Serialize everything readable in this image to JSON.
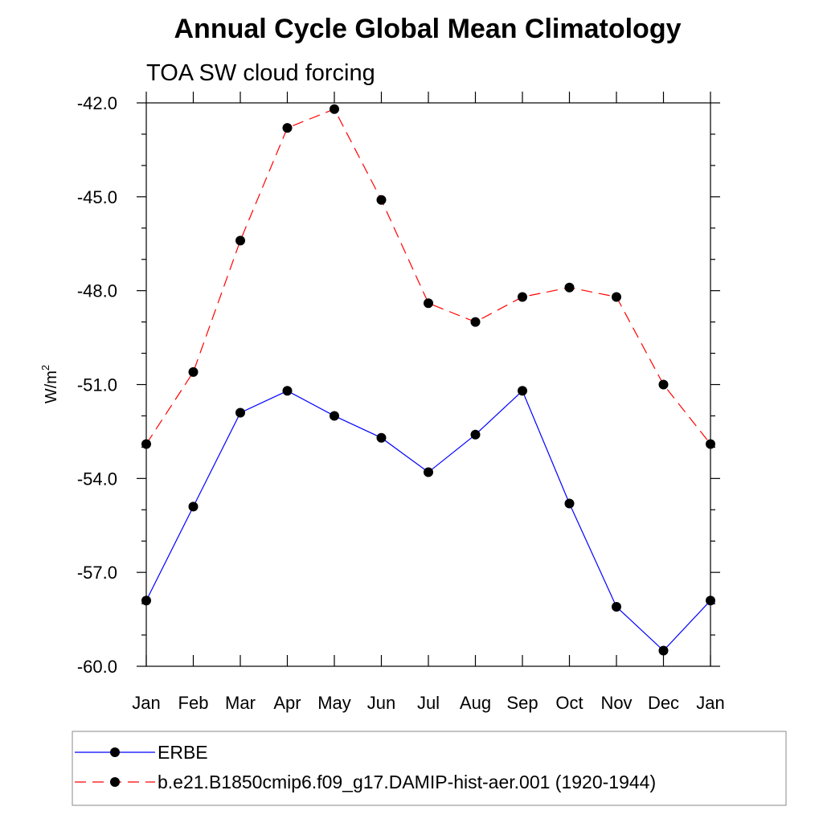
{
  "chart_data": {
    "type": "line",
    "title": "Annual Cycle Global Mean Climatology",
    "subtitle": "TOA SW cloud forcing",
    "xlabel": "",
    "ylabel": "W/m",
    "ylabel_superscript": "2",
    "categories": [
      "Jan",
      "Feb",
      "Mar",
      "Apr",
      "May",
      "Jun",
      "Jul",
      "Aug",
      "Sep",
      "Oct",
      "Nov",
      "Dec",
      "Jan"
    ],
    "ylim": [
      -60.0,
      -42.0
    ],
    "yticks": [
      "-42.0",
      "-45.0",
      "-48.0",
      "-51.0",
      "-54.0",
      "-57.0",
      "-60.0"
    ],
    "grid": false,
    "legend_position": "bottom",
    "series": [
      {
        "name": "ERBE",
        "color": "#0000ff",
        "style": "solid",
        "marker": "filled-circle",
        "values": [
          -57.9,
          -54.9,
          -51.9,
          -51.2,
          -52.0,
          -52.7,
          -53.8,
          -52.6,
          -51.2,
          -54.8,
          -58.1,
          -59.5,
          -57.9
        ]
      },
      {
        "name": "b.e21.B1850cmip6.f09_g17.DAMIP-hist-aer.001 (1920-1944)",
        "color": "#ff0000",
        "style": "dashed",
        "marker": "filled-circle",
        "values": [
          -52.9,
          -50.6,
          -46.4,
          -42.8,
          -42.2,
          -45.1,
          -48.4,
          -49.0,
          -48.2,
          -47.9,
          -48.2,
          -51.0,
          -52.9
        ]
      }
    ]
  }
}
